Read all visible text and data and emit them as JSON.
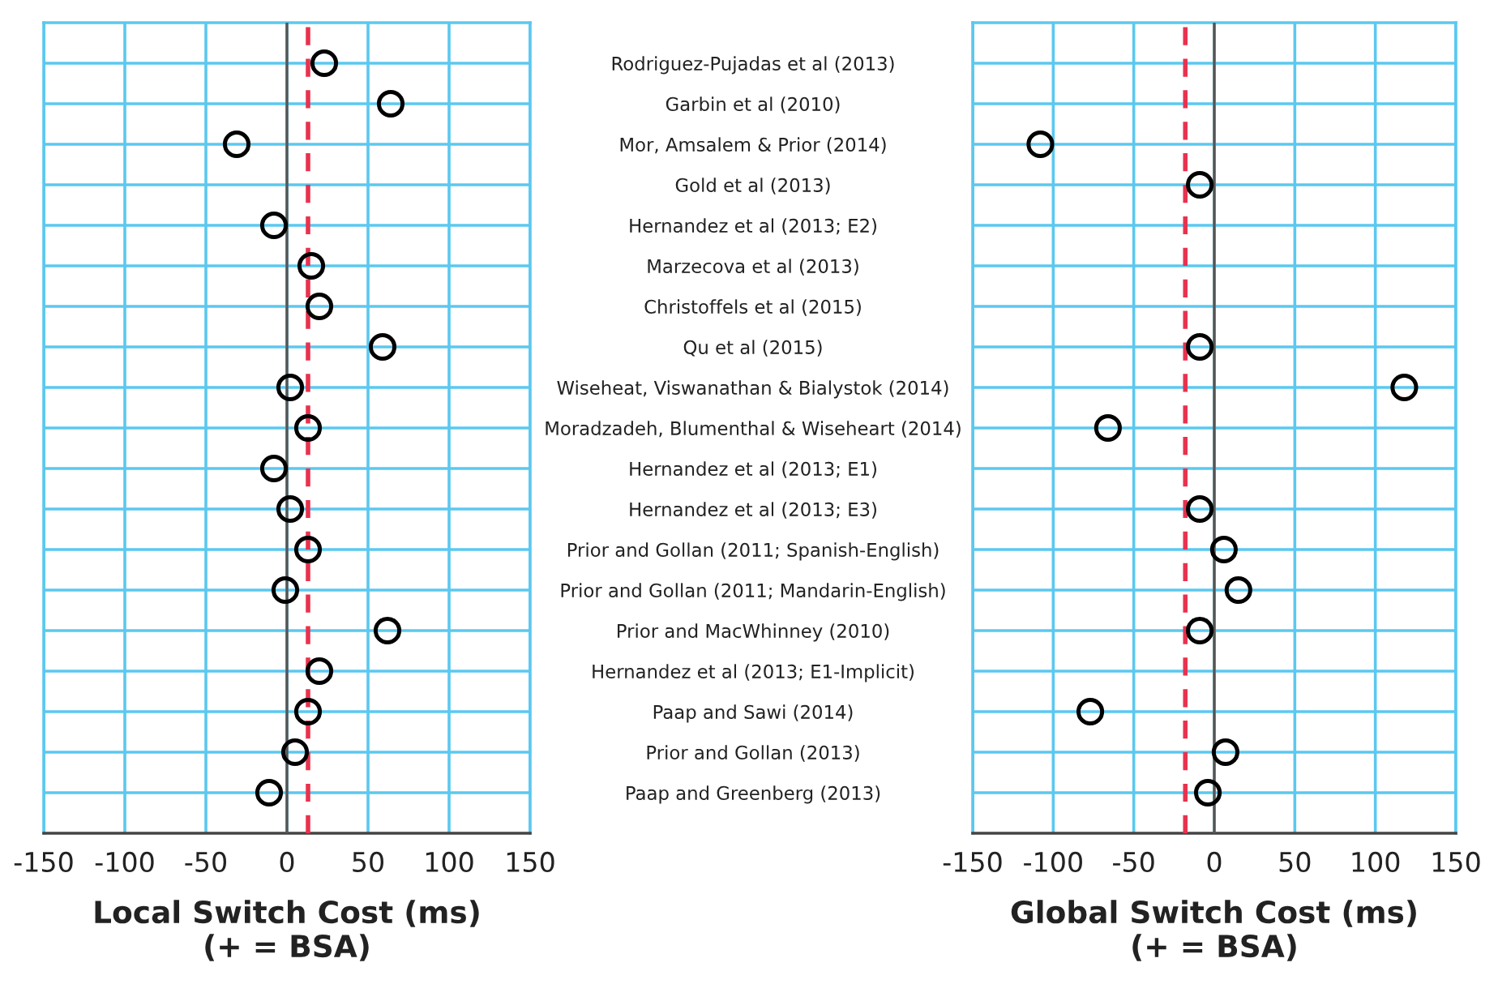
{
  "chart_data": [
    {
      "type": "scatter",
      "xlabel": "Local Switch Cost (ms)\n(+ = BSA)",
      "categories": [
        "Rodriguez-Pujadas et al (2013)",
        "Garbin et al (2010)",
        "Mor, Amsalem & Prior (2014)",
        "Gold et al (2013)",
        "Hernandez et al (2013; E2)",
        "Marzecova et al (2013)",
        "Christoffels et al (2015)",
        "Qu et al (2015)",
        "Wiseheat, Viswanathan & Bialystok (2014)",
        "Moradzadeh, Blumenthal & Wiseheart (2014)",
        "Hernandez et al (2013; E1)",
        "Hernandez et al (2013; E3)",
        "Prior and Gollan (2011; Spanish-English)",
        "Prior and Gollan (2011; Mandarin-English)",
        "Prior and MacWhinney (2010)",
        "Hernandez et al (2013; E1-Implicit)",
        "Paap and Sawi (2014)",
        "Prior and Gollan (2013)",
        "Paap and Greenberg (2013)"
      ],
      "orientation": "horizontal",
      "series": [
        {
          "color": "#000000",
          "values": [
            23,
            64,
            -31,
            null,
            -8,
            15,
            20,
            59,
            2,
            13,
            -8,
            2,
            13,
            -1,
            62,
            20,
            13,
            5,
            -11
          ]
        }
      ],
      "xlim": [
        -150,
        150
      ],
      "xticks": [
        -150,
        -100,
        -50,
        0,
        50,
        100,
        150
      ],
      "ref_lines": [
        {
          "axis": "x",
          "value": 0,
          "color": "#555555",
          "line_style": "solid"
        },
        {
          "axis": "x",
          "value": 13,
          "color": "#e8324f",
          "line_style": "dashed"
        }
      ],
      "grid": true,
      "marker": "circle"
    },
    {
      "type": "scatter",
      "xlabel": "Global Switch Cost (ms)\n(+ = BSA)",
      "categories": [
        null,
        null,
        null,
        null,
        null,
        null,
        null,
        null,
        null,
        null,
        null,
        null,
        null,
        null,
        null,
        null,
        null,
        null,
        null
      ],
      "orientation": "horizontal",
      "series": [
        {
          "color": "#000000",
          "values": [
            null,
            null,
            -108,
            -9,
            null,
            null,
            null,
            -9,
            118,
            -66,
            null,
            -9,
            6,
            15,
            -9,
            null,
            -77,
            7,
            -4
          ]
        }
      ],
      "xlim": [
        -150,
        150
      ],
      "xticks": [
        -150,
        -100,
        -50,
        0,
        50,
        100,
        150
      ],
      "ref_lines": [
        {
          "axis": "x",
          "value": 0,
          "color": "#555555",
          "line_style": "solid"
        },
        {
          "axis": "x",
          "value": -18,
          "color": "#e8324f",
          "line_style": "dashed"
        }
      ],
      "grid": true,
      "marker": "circle",
      "tick_labels": "x"
    }
  ]
}
